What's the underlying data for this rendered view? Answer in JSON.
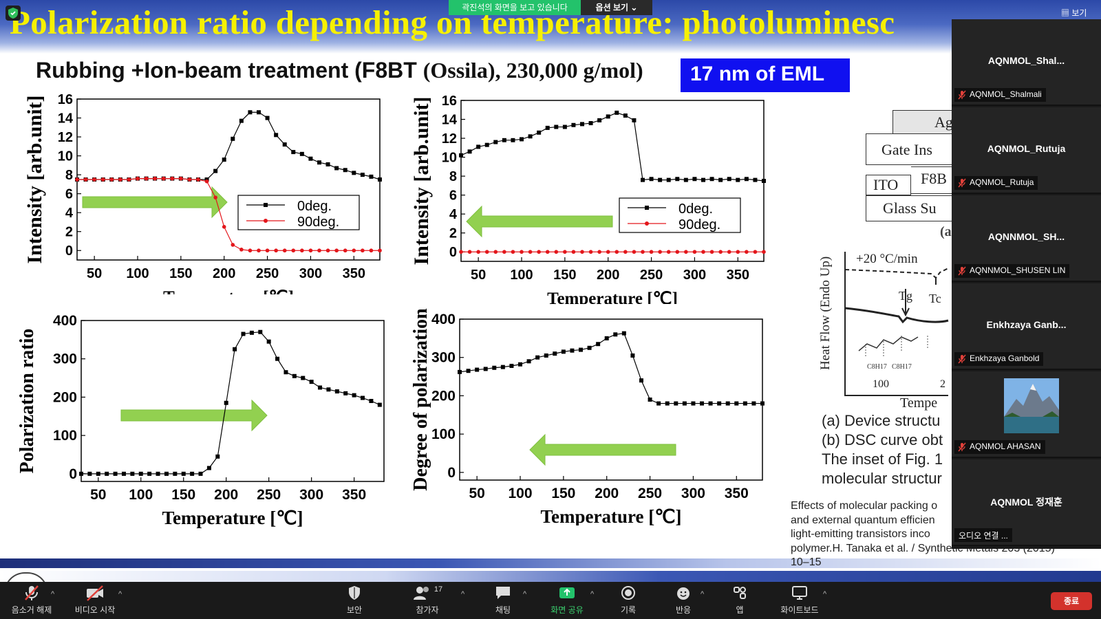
{
  "zoom": {
    "share_status": "곽진석의 화면을 보고 있습니다",
    "view_options": "옵션 보기 ⌄",
    "view_top": "▦ 보기",
    "toolbar": {
      "mute": "음소거 해제",
      "video": "비디오 시작",
      "security": "보안",
      "participants": "참가자",
      "participants_count": "17",
      "chat": "채팅",
      "share": "화면 공유",
      "record": "기록",
      "reactions": "반응",
      "apps": "앱",
      "whiteboard": "화이트보드",
      "end": "종료"
    },
    "participants": [
      {
        "name": "AQNMOL_Shal...",
        "label": "AQNMOL_Shalmali"
      },
      {
        "name": "AQNMOL_Rutuja",
        "label": "AQNMOL_Rutuja"
      },
      {
        "name": "AQNNMOL_SH...",
        "label": "AQNNMOL_SHUSEN LIN"
      },
      {
        "name": "Enkhzaya  Ganb...",
        "label": "Enkhzaya Ganbold"
      },
      {
        "name": "",
        "label": "AQNMOL AHASAN"
      },
      {
        "name": "AQNMOL 정재훈",
        "label": "오디오 연결 ..."
      }
    ],
    "colors": {
      "share_green": "#23c26b",
      "end_red": "#d3322c",
      "mute_red": "#e0413a"
    }
  },
  "slide": {
    "title": "Polarization ratio depending on temperature: photoluminesc",
    "subtitle_sans": "Rubbing +Ion-beam treatment (F8BT ",
    "subtitle_serif": "(Ossila), 230,000 g/mol)",
    "badge": "17 nm of EML",
    "device": {
      "ag": "Ag",
      "gate": "Gate Ins",
      "ito": "ITO",
      "f8": "F8B",
      "glass": "Glass Su",
      "panel_label": "(a"
    },
    "dsc": {
      "ylabel": "Heat Flow (Endo Up)",
      "rate": "+20 °C/min",
      "tg": "Tg",
      "tc": "Tc",
      "tick": "100",
      "tick2": "2",
      "xlabel": "Tempe",
      "sub1": "C8H17",
      "sub2": "C8H17"
    },
    "caption": [
      "(a)   Device structu",
      "(b) DSC curve obt",
      "The inset of Fig. 1",
      "molecular structur"
    ],
    "reference": [
      "Effects of molecular packing o",
      "and external quantum efficien",
      " light-emitting transistors inco",
      "polymer.H. Tanaka et al. / Synthetic Metals 203 (2015)",
      " 10–15"
    ]
  },
  "chart_data": [
    {
      "type": "line",
      "title": "",
      "xlabel": "Temperature [℃]",
      "ylabel": "Intensity [arb.unit]",
      "xlim": [
        30,
        380
      ],
      "ylim": [
        -1,
        16
      ],
      "xticks": [
        50,
        100,
        150,
        200,
        250,
        300,
        350
      ],
      "yticks": [
        0,
        2,
        4,
        6,
        8,
        10,
        12,
        14,
        16
      ],
      "legend": "center-right",
      "arrow": "right",
      "x": [
        30,
        40,
        50,
        60,
        70,
        80,
        90,
        100,
        110,
        120,
        130,
        140,
        150,
        160,
        170,
        180,
        190,
        200,
        210,
        220,
        230,
        240,
        250,
        260,
        270,
        280,
        290,
        300,
        310,
        320,
        330,
        340,
        350,
        360,
        370,
        380
      ],
      "series": [
        {
          "name": "0deg.",
          "color": "#000000",
          "marker": "square",
          "values": [
            7.5,
            7.5,
            7.5,
            7.5,
            7.5,
            7.5,
            7.5,
            7.6,
            7.6,
            7.6,
            7.6,
            7.6,
            7.6,
            7.5,
            7.5,
            7.5,
            8.4,
            9.6,
            11.8,
            13.7,
            14.6,
            14.6,
            14.0,
            12.2,
            11.2,
            10.4,
            10.2,
            9.7,
            9.3,
            9.1,
            8.7,
            8.5,
            8.2,
            8.0,
            7.8,
            7.5
          ]
        },
        {
          "name": "90deg.",
          "color": "#e3161b",
          "marker": "circle",
          "values": [
            7.5,
            7.5,
            7.5,
            7.5,
            7.5,
            7.5,
            7.5,
            7.6,
            7.6,
            7.6,
            7.6,
            7.6,
            7.6,
            7.5,
            7.5,
            7.3,
            5.6,
            2.5,
            0.6,
            0.1,
            0,
            0,
            0,
            0,
            0,
            0,
            0,
            0,
            0,
            0,
            0,
            0,
            0,
            0,
            0,
            0
          ]
        }
      ]
    },
    {
      "type": "line",
      "title": "",
      "xlabel": "Temperature [℃]",
      "ylabel": "Intensity [arb.unit]",
      "xlim": [
        30,
        380
      ],
      "ylim": [
        -1,
        16
      ],
      "xticks": [
        50,
        100,
        150,
        200,
        250,
        300,
        350
      ],
      "yticks": [
        0,
        2,
        4,
        6,
        8,
        10,
        12,
        14,
        16
      ],
      "legend": "center-right",
      "arrow": "left",
      "x": [
        30,
        40,
        50,
        60,
        70,
        80,
        90,
        100,
        110,
        120,
        130,
        140,
        150,
        160,
        170,
        180,
        190,
        200,
        210,
        220,
        230,
        240,
        250,
        260,
        270,
        280,
        290,
        300,
        310,
        320,
        330,
        340,
        350,
        360,
        370,
        380
      ],
      "series": [
        {
          "name": "0deg.",
          "color": "#000000",
          "marker": "square",
          "values": [
            10.2,
            10.6,
            11.1,
            11.3,
            11.6,
            11.8,
            11.8,
            11.9,
            12.2,
            12.6,
            13.1,
            13.2,
            13.2,
            13.4,
            13.5,
            13.6,
            13.9,
            14.3,
            14.7,
            14.4,
            13.9,
            7.6,
            7.7,
            7.6,
            7.6,
            7.7,
            7.6,
            7.7,
            7.6,
            7.7,
            7.6,
            7.7,
            7.6,
            7.7,
            7.6,
            7.5
          ]
        },
        {
          "name": "90deg.",
          "color": "#e3161b",
          "marker": "circle",
          "values": [
            0,
            0,
            0,
            0,
            0,
            0,
            0,
            0,
            0,
            0,
            0,
            0,
            0,
            0,
            0,
            0,
            0,
            0,
            0,
            0,
            0,
            0,
            0,
            0,
            0,
            0,
            0,
            0,
            0,
            0,
            0,
            0,
            0,
            0,
            0,
            0
          ]
        }
      ]
    },
    {
      "type": "line",
      "title": "",
      "xlabel": "Temperature [℃]",
      "ylabel": "Polarization ratio",
      "xlim": [
        30,
        385
      ],
      "ylim": [
        -20,
        400
      ],
      "xticks": [
        50,
        100,
        150,
        200,
        250,
        300,
        350
      ],
      "yticks": [
        0,
        100,
        200,
        300,
        400
      ],
      "arrow": "right",
      "x": [
        30,
        40,
        50,
        60,
        70,
        80,
        90,
        100,
        110,
        120,
        130,
        140,
        150,
        160,
        170,
        180,
        190,
        200,
        210,
        220,
        230,
        240,
        250,
        260,
        270,
        280,
        290,
        300,
        310,
        320,
        330,
        340,
        350,
        360,
        370,
        380
      ],
      "series": [
        {
          "name": "",
          "color": "#000000",
          "marker": "square",
          "values": [
            0,
            0,
            0,
            0,
            0,
            0,
            0,
            0,
            0,
            0,
            0,
            0,
            0,
            0,
            0,
            15,
            45,
            185,
            325,
            365,
            368,
            370,
            345,
            300,
            265,
            255,
            250,
            240,
            225,
            220,
            215,
            210,
            205,
            198,
            190,
            180
          ]
        }
      ]
    },
    {
      "type": "line",
      "title": "",
      "xlabel": "Temperature [℃]",
      "ylabel": "Degree of polarization",
      "xlim": [
        30,
        380
      ],
      "ylim": [
        -20,
        400
      ],
      "xticks": [
        50,
        100,
        150,
        200,
        250,
        300,
        350
      ],
      "yticks": [
        0,
        100,
        200,
        300,
        400
      ],
      "arrow": "left",
      "x": [
        30,
        40,
        50,
        60,
        70,
        80,
        90,
        100,
        110,
        120,
        130,
        140,
        150,
        160,
        170,
        180,
        190,
        200,
        210,
        220,
        230,
        240,
        250,
        260,
        270,
        280,
        290,
        300,
        310,
        320,
        330,
        340,
        350,
        360,
        370,
        380
      ],
      "series": [
        {
          "name": "",
          "color": "#000000",
          "marker": "square",
          "values": [
            262,
            265,
            268,
            270,
            273,
            275,
            278,
            282,
            290,
            300,
            305,
            310,
            315,
            318,
            320,
            325,
            335,
            350,
            360,
            363,
            305,
            240,
            190,
            180,
            180,
            180,
            180,
            180,
            180,
            180,
            180,
            180,
            180,
            180,
            180,
            180
          ]
        }
      ]
    }
  ]
}
